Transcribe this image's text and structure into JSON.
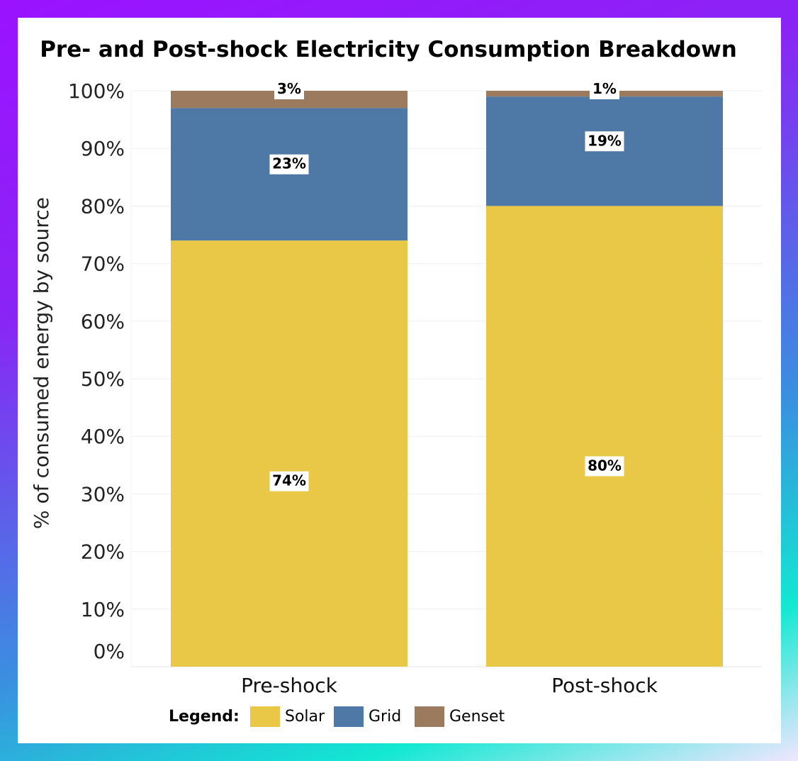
{
  "chart_data": {
    "type": "bar",
    "stacked": true,
    "title": "Pre- and Post-shock Electricity Consumption Breakdown",
    "xlabel": "",
    "ylabel": "% of consumed energy by source",
    "categories": [
      "Pre-shock",
      "Post-shock"
    ],
    "series": [
      {
        "name": "Solar",
        "color": "#e9c847",
        "values": [
          74,
          80
        ],
        "labels": [
          "74%",
          "80%"
        ]
      },
      {
        "name": "Grid",
        "color": "#4e79a7",
        "values": [
          23,
          19
        ],
        "labels": [
          "23%",
          "19%"
        ]
      },
      {
        "name": "Genset",
        "color": "#9c7a5e",
        "values": [
          3,
          1
        ],
        "labels": [
          "3%",
          "1%"
        ]
      }
    ],
    "ylim": [
      0,
      100
    ],
    "yticks": [
      "0%",
      "10%",
      "20%",
      "30%",
      "40%",
      "50%",
      "60%",
      "70%",
      "80%",
      "90%",
      "100%"
    ],
    "ytick_values": [
      0,
      10,
      20,
      30,
      40,
      50,
      60,
      70,
      80,
      90,
      100
    ],
    "grid": true,
    "legend": {
      "title": "Legend:",
      "position": "bottom"
    }
  }
}
